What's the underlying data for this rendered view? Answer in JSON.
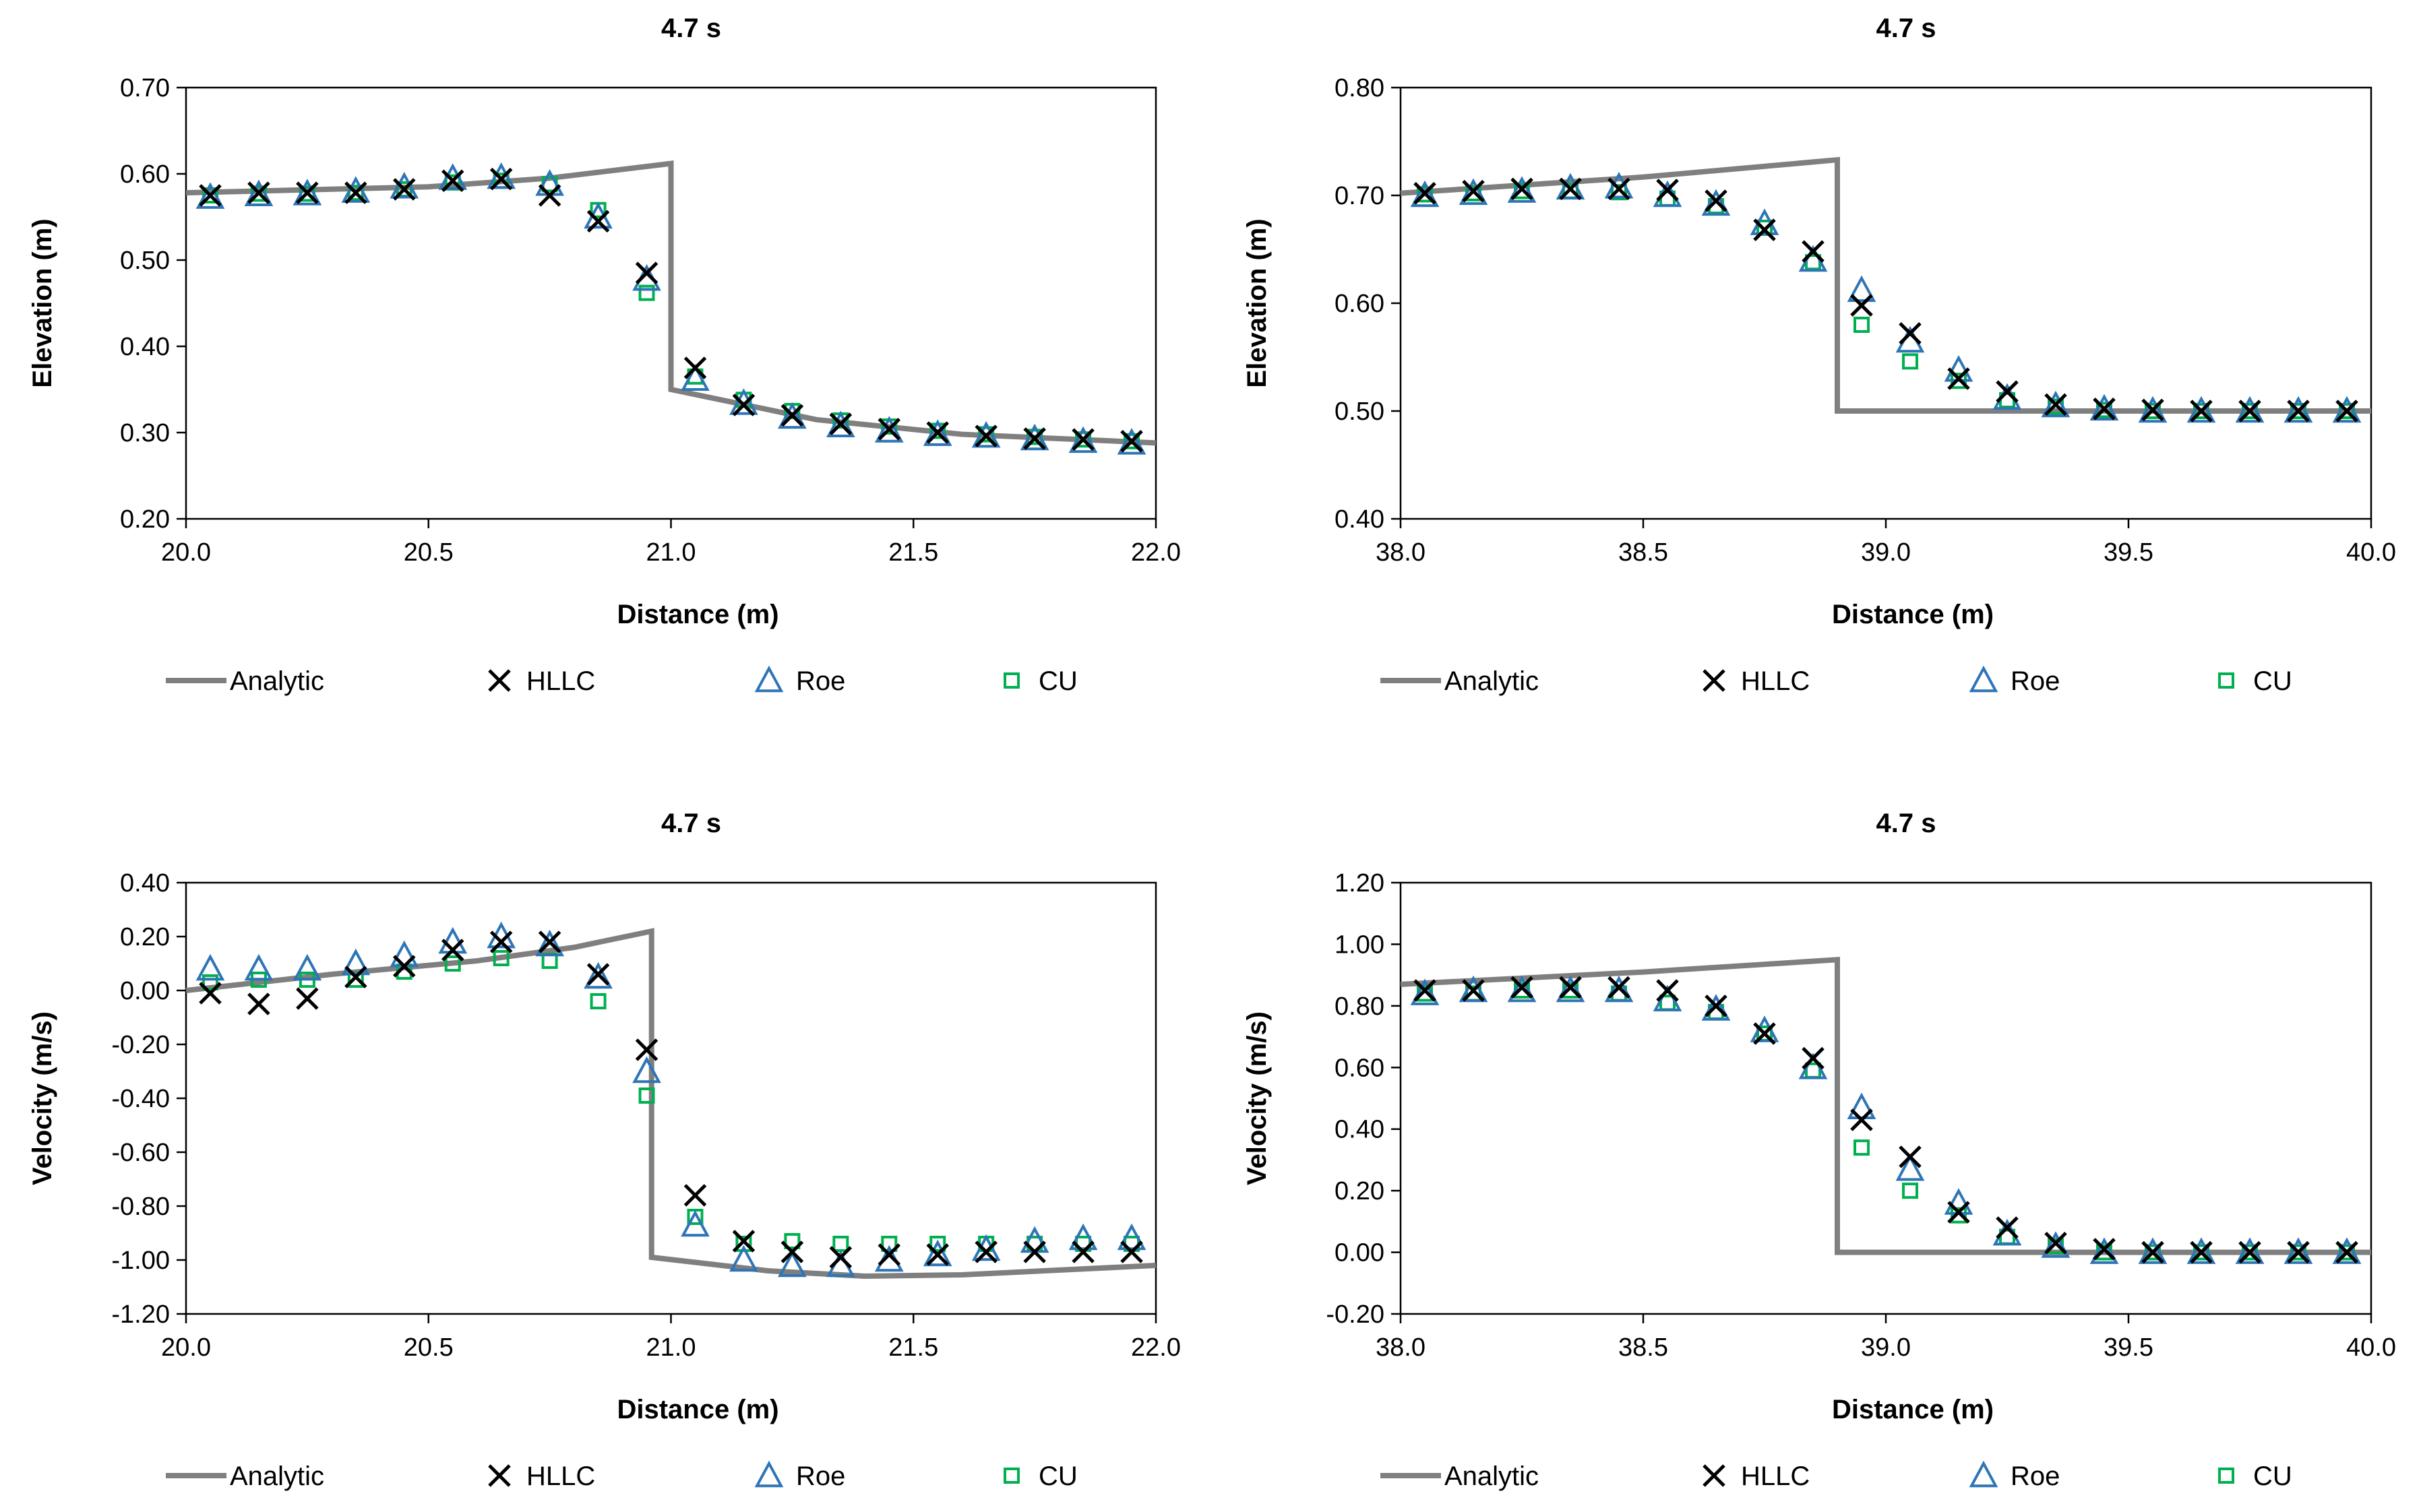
{
  "colors": {
    "analytic": "#7f7f7f",
    "hllc": "#000000",
    "roe": "#2e75b6",
    "cu": "#00b050",
    "axis": "#000000"
  },
  "chart_data": [
    {
      "id": "elevation-left",
      "type": "scatter",
      "title": "4.7 s",
      "xlabel": "Distance (m)",
      "ylabel": "Elevation (m)",
      "xlim": [
        20.0,
        22.0
      ],
      "ylim": [
        0.2,
        0.7
      ],
      "xticks": [
        "20.0",
        "20.5",
        "21.0",
        "21.5",
        "22.0"
      ],
      "yticks": [
        "0.20",
        "0.30",
        "0.40",
        "0.50",
        "0.60",
        "0.70"
      ],
      "grid": false,
      "legend": "bottom",
      "analytic": {
        "x": [
          20.0,
          20.5,
          20.75,
          21.0,
          21.0,
          21.3,
          21.6,
          22.0
        ],
        "y": [
          0.578,
          0.585,
          0.595,
          0.612,
          0.35,
          0.315,
          0.298,
          0.288
        ]
      },
      "x": [
        20.05,
        20.15,
        20.25,
        20.35,
        20.45,
        20.55,
        20.65,
        20.75,
        20.85,
        20.95,
        21.05,
        21.15,
        21.25,
        21.35,
        21.45,
        21.55,
        21.65,
        21.75,
        21.85,
        21.95
      ],
      "series": [
        {
          "name": "HLLC",
          "marker": "x",
          "values": [
            0.575,
            0.578,
            0.578,
            0.578,
            0.582,
            0.592,
            0.594,
            0.575,
            0.545,
            0.485,
            0.375,
            0.332,
            0.32,
            0.31,
            0.304,
            0.3,
            0.296,
            0.293,
            0.292,
            0.29
          ]
        },
        {
          "name": "Roe",
          "marker": "triangle",
          "values": [
            0.573,
            0.576,
            0.577,
            0.58,
            0.585,
            0.595,
            0.596,
            0.588,
            0.55,
            0.478,
            0.362,
            0.334,
            0.318,
            0.308,
            0.302,
            0.298,
            0.296,
            0.293,
            0.29,
            0.288
          ]
        },
        {
          "name": "CU",
          "marker": "square",
          "values": [
            0.575,
            0.577,
            0.577,
            0.578,
            0.582,
            0.59,
            0.592,
            0.588,
            0.558,
            0.462,
            0.365,
            0.338,
            0.325,
            0.314,
            0.307,
            0.302,
            0.298,
            0.295,
            0.292,
            0.29
          ]
        }
      ]
    },
    {
      "id": "elevation-right",
      "type": "scatter",
      "title": "4.7 s",
      "xlabel": "Distance (m)",
      "ylabel": "Elevation (m)",
      "xlim": [
        38.0,
        40.0
      ],
      "ylim": [
        0.4,
        0.8
      ],
      "xticks": [
        "38.0",
        "38.5",
        "39.0",
        "39.5",
        "40.0"
      ],
      "yticks": [
        "0.40",
        "0.50",
        "0.60",
        "0.70",
        "0.80"
      ],
      "grid": false,
      "legend": "bottom",
      "analytic": {
        "x": [
          38.0,
          38.5,
          38.9,
          38.9,
          40.0
        ],
        "y": [
          0.702,
          0.717,
          0.733,
          0.5,
          0.5
        ]
      },
      "x": [
        38.05,
        38.15,
        38.25,
        38.35,
        38.45,
        38.55,
        38.65,
        38.75,
        38.85,
        38.95,
        39.05,
        39.15,
        39.25,
        39.35,
        39.45,
        39.55,
        39.65,
        39.75,
        39.85,
        39.95
      ],
      "series": [
        {
          "name": "HLLC",
          "marker": "x",
          "values": [
            0.702,
            0.704,
            0.706,
            0.706,
            0.706,
            0.705,
            0.695,
            0.668,
            0.648,
            0.598,
            0.572,
            0.53,
            0.518,
            0.506,
            0.502,
            0.501,
            0.5,
            0.5,
            0.5,
            0.5
          ]
        },
        {
          "name": "Roe",
          "marker": "triangle",
          "values": [
            0.7,
            0.702,
            0.704,
            0.707,
            0.708,
            0.7,
            0.692,
            0.674,
            0.64,
            0.612,
            0.565,
            0.538,
            0.512,
            0.505,
            0.502,
            0.5,
            0.5,
            0.5,
            0.5,
            0.5
          ]
        },
        {
          "name": "CU",
          "marker": "square",
          "values": [
            0.701,
            0.702,
            0.704,
            0.704,
            0.703,
            0.697,
            0.69,
            0.67,
            0.638,
            0.58,
            0.546,
            0.528,
            0.51,
            0.504,
            0.501,
            0.5,
            0.5,
            0.5,
            0.5,
            0.5
          ]
        }
      ]
    },
    {
      "id": "velocity-left",
      "type": "scatter",
      "title": "4.7 s",
      "xlabel": "Distance (m)",
      "ylabel": "Velocity (m/s)",
      "xlim": [
        20.0,
        22.0
      ],
      "ylim": [
        -1.2,
        0.4
      ],
      "xticks": [
        "20.0",
        "20.5",
        "21.0",
        "21.5",
        "22.0"
      ],
      "yticks": [
        "-1.20",
        "-1.00",
        "-0.80",
        "-0.60",
        "-0.40",
        "-0.20",
        "0.00",
        "0.20",
        "0.40"
      ],
      "grid": false,
      "legend": "bottom",
      "analytic": {
        "x": [
          20.0,
          20.3,
          20.6,
          20.8,
          20.96,
          20.96,
          21.2,
          21.4,
          21.6,
          22.0
        ],
        "y": [
          0.0,
          0.06,
          0.11,
          0.16,
          0.22,
          -0.99,
          -1.04,
          -1.06,
          -1.055,
          -1.02
        ]
      },
      "x": [
        20.05,
        20.15,
        20.25,
        20.35,
        20.45,
        20.55,
        20.65,
        20.75,
        20.85,
        20.95,
        21.05,
        21.15,
        21.25,
        21.35,
        21.45,
        21.55,
        21.65,
        21.75,
        21.85,
        21.95
      ],
      "series": [
        {
          "name": "HLLC",
          "marker": "x",
          "values": [
            -0.01,
            -0.05,
            -0.03,
            0.05,
            0.09,
            0.15,
            0.18,
            0.18,
            0.06,
            -0.22,
            -0.76,
            -0.93,
            -0.97,
            -0.99,
            -0.98,
            -0.98,
            -0.97,
            -0.97,
            -0.97,
            -0.97
          ]
        },
        {
          "name": "Roe",
          "marker": "triangle",
          "values": [
            0.08,
            0.08,
            0.08,
            0.1,
            0.13,
            0.18,
            0.2,
            0.17,
            0.05,
            -0.3,
            -0.87,
            -1.0,
            -1.02,
            -1.02,
            -1.0,
            -0.98,
            -0.96,
            -0.93,
            -0.92,
            -0.92
          ]
        },
        {
          "name": "CU",
          "marker": "square",
          "values": [
            0.03,
            0.04,
            0.04,
            0.04,
            0.07,
            0.1,
            0.12,
            0.11,
            -0.04,
            -0.39,
            -0.84,
            -0.94,
            -0.93,
            -0.94,
            -0.94,
            -0.94,
            -0.94,
            -0.94,
            -0.94,
            -0.94
          ]
        }
      ]
    },
    {
      "id": "velocity-right",
      "type": "scatter",
      "title": "4.7 s",
      "xlabel": "Distance (m)",
      "ylabel": "Velocity (m/s)",
      "xlim": [
        38.0,
        40.0
      ],
      "ylim": [
        -0.2,
        1.2
      ],
      "xticks": [
        "38.0",
        "38.5",
        "39.0",
        "39.5",
        "40.0"
      ],
      "yticks": [
        "-0.20",
        "0.00",
        "0.20",
        "0.40",
        "0.60",
        "0.80",
        "1.00",
        "1.20"
      ],
      "grid": false,
      "legend": "bottom",
      "analytic": {
        "x": [
          38.0,
          38.5,
          38.9,
          38.9,
          40.0
        ],
        "y": [
          0.87,
          0.91,
          0.95,
          0.0,
          0.0
        ]
      },
      "x": [
        38.05,
        38.15,
        38.25,
        38.35,
        38.45,
        38.55,
        38.65,
        38.75,
        38.85,
        38.95,
        39.05,
        39.15,
        39.25,
        39.35,
        39.45,
        39.55,
        39.65,
        39.75,
        39.85,
        39.95
      ],
      "series": [
        {
          "name": "HLLC",
          "marker": "x",
          "values": [
            0.85,
            0.85,
            0.86,
            0.86,
            0.86,
            0.85,
            0.8,
            0.71,
            0.63,
            0.43,
            0.31,
            0.13,
            0.08,
            0.03,
            0.01,
            0.0,
            0.0,
            0.0,
            0.0,
            0.0
          ]
        },
        {
          "name": "Roe",
          "marker": "triangle",
          "values": [
            0.84,
            0.85,
            0.85,
            0.85,
            0.85,
            0.82,
            0.79,
            0.72,
            0.6,
            0.47,
            0.27,
            0.16,
            0.06,
            0.02,
            0.0,
            0.0,
            0.0,
            0.0,
            0.0,
            0.0
          ]
        },
        {
          "name": "CU",
          "marker": "square",
          "values": [
            0.84,
            0.84,
            0.85,
            0.85,
            0.84,
            0.81,
            0.78,
            0.71,
            0.59,
            0.34,
            0.2,
            0.12,
            0.05,
            0.02,
            0.0,
            0.0,
            0.0,
            0.0,
            0.0,
            0.0
          ]
        }
      ]
    }
  ],
  "legend": {
    "items": [
      {
        "key": "analytic",
        "label": "Analytic"
      },
      {
        "key": "hllc",
        "label": "HLLC"
      },
      {
        "key": "roe",
        "label": "Roe"
      },
      {
        "key": "cu",
        "label": "CU"
      }
    ]
  }
}
